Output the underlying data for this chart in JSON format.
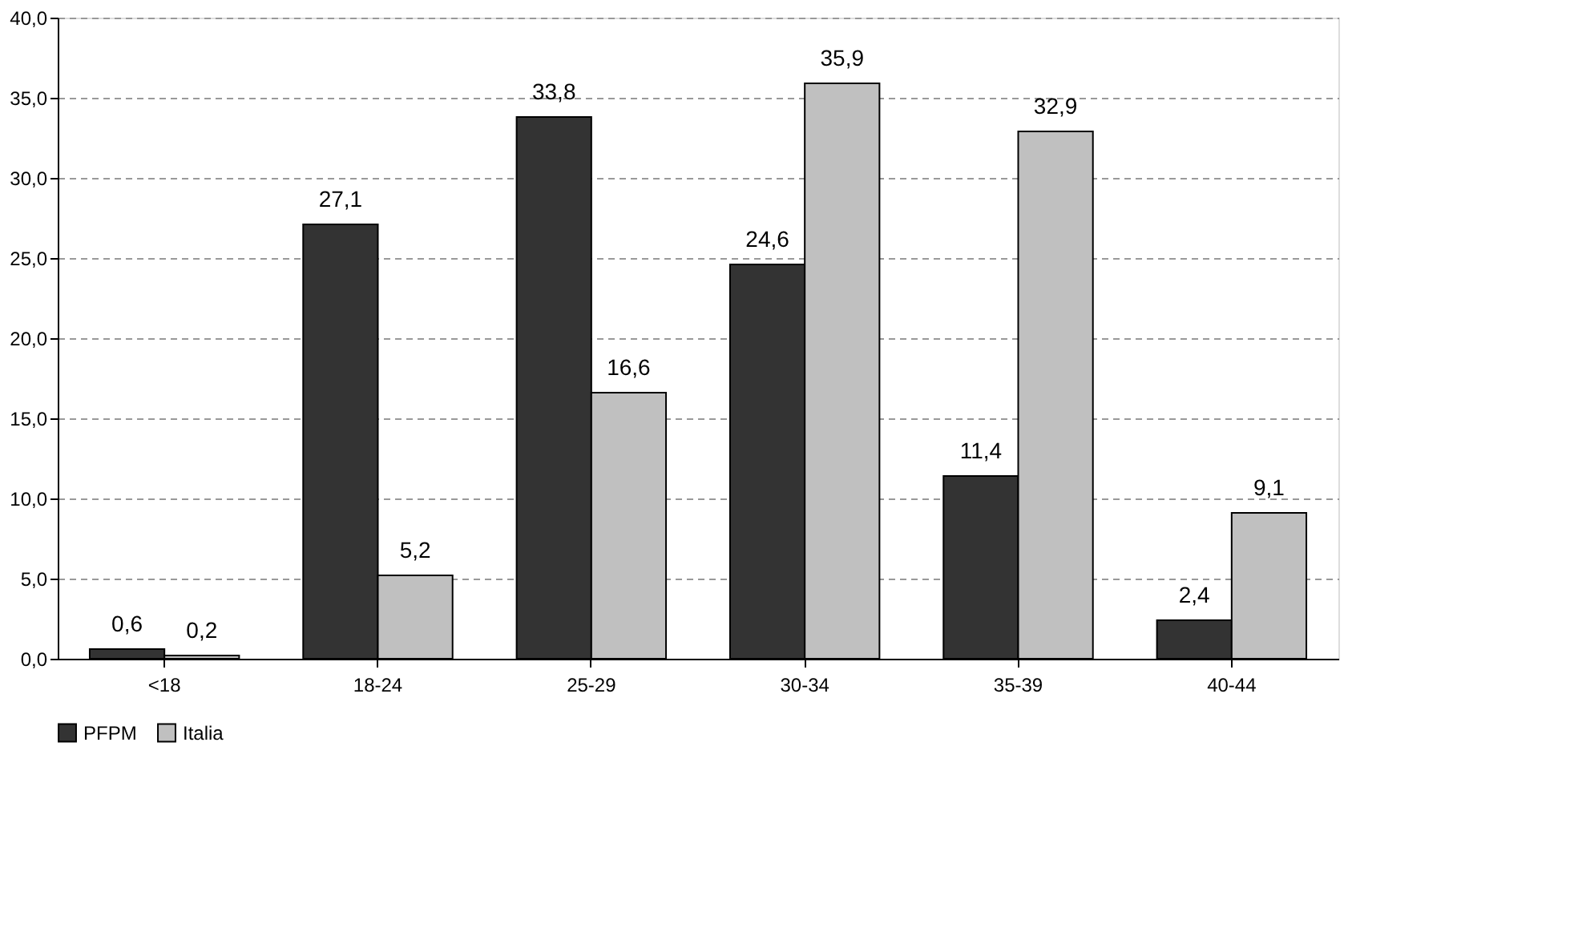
{
  "chart_data": {
    "type": "bar",
    "categories": [
      "<18",
      "18-24",
      "25-29",
      "30-34",
      "35-39",
      "40-44"
    ],
    "series": [
      {
        "name": "PFPM",
        "color": "#333333",
        "values": [
          0.6,
          27.1,
          33.8,
          24.6,
          11.4,
          2.4
        ],
        "value_labels": [
          "0,6",
          "27,1",
          "33,8",
          "24,6",
          "11,4",
          "2,4"
        ]
      },
      {
        "name": "Italia",
        "color": "#c0c0c0",
        "values": [
          0.2,
          5.2,
          16.6,
          35.9,
          32.9,
          9.1
        ],
        "value_labels": [
          "0,2",
          "5,2",
          "16,6",
          "35,9",
          "32,9",
          "9,1"
        ]
      }
    ],
    "ylim": [
      0,
      40
    ],
    "yticks": [
      {
        "value": 0,
        "label": "0,0"
      },
      {
        "value": 5,
        "label": "5,0"
      },
      {
        "value": 10,
        "label": "10,0"
      },
      {
        "value": 15,
        "label": "15,0"
      },
      {
        "value": 20,
        "label": "20,0"
      },
      {
        "value": 25,
        "label": "25,0"
      },
      {
        "value": 30,
        "label": "30,0"
      },
      {
        "value": 35,
        "label": "35,0"
      },
      {
        "value": 40,
        "label": "40,0"
      }
    ],
    "grid": "y",
    "legend": "bottom"
  }
}
